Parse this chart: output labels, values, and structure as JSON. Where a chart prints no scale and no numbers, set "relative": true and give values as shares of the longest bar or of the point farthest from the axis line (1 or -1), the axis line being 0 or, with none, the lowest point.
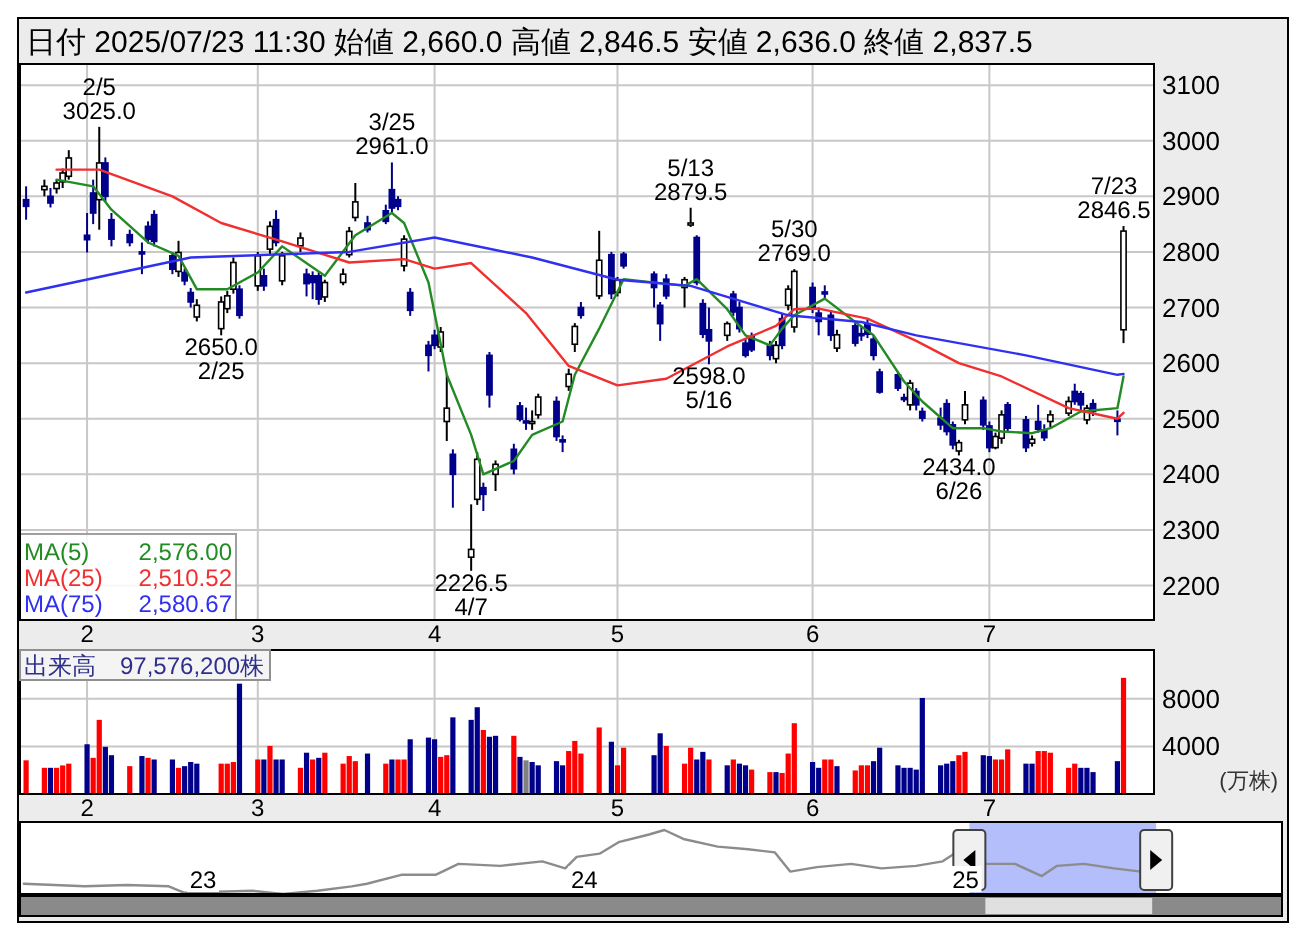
{
  "chart_data": [
    {
      "type": "candlestick",
      "title": "日付 2025/07/23 11:30 始値 2,660.0 高値 2,846.5 安値 2,636.0 終値 2,837.5",
      "grid": true,
      "legend": "bottom left",
      "xlim": [
        "2025-01-23",
        "2025-07-28"
      ],
      "ylim": [
        2138,
        3138
      ],
      "yticks": [
        2200,
        2300,
        2400,
        2500,
        2600,
        2700,
        2800,
        2900,
        3000,
        3100
      ],
      "xticks": [
        {
          "value": "2025-02-03",
          "label": "2"
        },
        {
          "value": "2025-03-03",
          "label": "3"
        },
        {
          "value": "2025-04-01",
          "label": "4"
        },
        {
          "value": "2025-05-01",
          "label": "5"
        },
        {
          "value": "2025-06-02",
          "label": "6"
        },
        {
          "value": "2025-07-01",
          "label": "7"
        }
      ],
      "x": [
        "2025-01-24",
        "2025-01-27",
        "2025-01-28",
        "2025-01-29",
        "2025-01-30",
        "2025-01-31",
        "2025-02-03",
        "2025-02-04",
        "2025-02-05",
        "2025-02-06",
        "2025-02-07",
        "2025-02-10",
        "2025-02-12",
        "2025-02-13",
        "2025-02-14",
        "2025-02-17",
        "2025-02-18",
        "2025-02-19",
        "2025-02-20",
        "2025-02-21",
        "2025-02-25",
        "2025-02-26",
        "2025-02-27",
        "2025-02-28",
        "2025-03-03",
        "2025-03-04",
        "2025-03-05",
        "2025-03-06",
        "2025-03-07",
        "2025-03-10",
        "2025-03-11",
        "2025-03-12",
        "2025-03-13",
        "2025-03-14",
        "2025-03-17",
        "2025-03-18",
        "2025-03-19",
        "2025-03-21",
        "2025-03-24",
        "2025-03-25",
        "2025-03-26",
        "2025-03-27",
        "2025-03-28",
        "2025-03-31",
        "2025-04-01",
        "2025-04-02",
        "2025-04-03",
        "2025-04-04",
        "2025-04-07",
        "2025-04-08",
        "2025-04-09",
        "2025-04-10",
        "2025-04-11",
        "2025-04-14",
        "2025-04-15",
        "2025-04-16",
        "2025-04-17",
        "2025-04-18",
        "2025-04-21",
        "2025-04-22",
        "2025-04-23",
        "2025-04-24",
        "2025-04-25",
        "2025-04-28",
        "2025-04-30",
        "2025-05-01",
        "2025-05-02",
        "2025-05-07",
        "2025-05-08",
        "2025-05-09",
        "2025-05-12",
        "2025-05-13",
        "2025-05-14",
        "2025-05-15",
        "2025-05-16",
        "2025-05-19",
        "2025-05-20",
        "2025-05-21",
        "2025-05-22",
        "2025-05-23",
        "2025-05-26",
        "2025-05-27",
        "2025-05-28",
        "2025-05-29",
        "2025-05-30",
        "2025-06-02",
        "2025-06-03",
        "2025-06-04",
        "2025-06-05",
        "2025-06-06",
        "2025-06-09",
        "2025-06-10",
        "2025-06-11",
        "2025-06-12",
        "2025-06-13",
        "2025-06-16",
        "2025-06-17",
        "2025-06-18",
        "2025-06-19",
        "2025-06-20",
        "2025-06-23",
        "2025-06-24",
        "2025-06-25",
        "2025-06-26",
        "2025-06-27",
        "2025-06-30",
        "2025-07-01",
        "2025-07-02",
        "2025-07-03",
        "2025-07-04",
        "2025-07-07",
        "2025-07-08",
        "2025-07-09",
        "2025-07-10",
        "2025-07-11",
        "2025-07-14",
        "2025-07-15",
        "2025-07-16",
        "2025-07-17",
        "2025-07-18",
        "2025-07-22",
        "2025-07-23"
      ],
      "ohlc": [
        [
          2894,
          2918,
          2858,
          2882
        ],
        [
          2912,
          2930,
          2900,
          2918
        ],
        [
          2900,
          2915,
          2880,
          2888
        ],
        [
          2914,
          2930,
          2905,
          2924
        ],
        [
          2926,
          2950,
          2915,
          2942
        ],
        [
          2936,
          2983,
          2930,
          2969
        ],
        [
          2830,
          2870,
          2799,
          2822
        ],
        [
          2906,
          2930,
          2850,
          2870
        ],
        [
          2894,
          3025,
          2840,
          2960
        ],
        [
          2960,
          2970,
          2890,
          2900
        ],
        [
          2858,
          2870,
          2810,
          2823
        ],
        [
          2831,
          2840,
          2810,
          2817
        ],
        [
          2800,
          2817,
          2760,
          2799
        ],
        [
          2846,
          2855,
          2815,
          2823
        ],
        [
          2867,
          2875,
          2810,
          2819
        ],
        [
          2793,
          2800,
          2760,
          2769
        ],
        [
          2765,
          2820,
          2755,
          2799
        ],
        [
          2763,
          2770,
          2740,
          2748
        ],
        [
          2727,
          2735,
          2700,
          2710
        ],
        [
          2683,
          2715,
          2675,
          2704
        ],
        [
          2662,
          2720,
          2650,
          2710
        ],
        [
          2698,
          2730,
          2690,
          2721
        ],
        [
          2733,
          2790,
          2725,
          2781
        ],
        [
          2733,
          2740,
          2680,
          2686
        ],
        [
          2739,
          2800,
          2730,
          2793
        ],
        [
          2757,
          2770,
          2730,
          2739
        ],
        [
          2805,
          2855,
          2795,
          2846
        ],
        [
          2858,
          2875,
          2810,
          2817
        ],
        [
          2748,
          2800,
          2740,
          2793
        ],
        [
          2811,
          2835,
          2800,
          2825
        ],
        [
          2760,
          2770,
          2720,
          2743
        ],
        [
          2757,
          2765,
          2715,
          2745
        ],
        [
          2757,
          2765,
          2705,
          2715
        ],
        [
          2719,
          2750,
          2710,
          2745
        ],
        [
          2745,
          2770,
          2740,
          2760
        ],
        [
          2795,
          2845,
          2790,
          2837
        ],
        [
          2862,
          2924,
          2855,
          2890
        ],
        [
          2852,
          2865,
          2835,
          2840
        ],
        [
          2874,
          2885,
          2850,
          2855
        ],
        [
          2912,
          2961,
          2870,
          2879
        ],
        [
          2894,
          2900,
          2875,
          2882
        ],
        [
          2775,
          2830,
          2765,
          2823
        ],
        [
          2727,
          2735,
          2685,
          2695
        ],
        [
          2632,
          2640,
          2585,
          2614
        ],
        [
          2650,
          2660,
          2625,
          2632
        ],
        [
          2629,
          2665,
          2620,
          2656
        ],
        [
          2495,
          2579,
          2460,
          2519
        ],
        [
          2436,
          2445,
          2340,
          2400
        ],
        [
          2251,
          2346,
          2226.5,
          2265
        ],
        [
          2355,
          2440,
          2345,
          2427
        ],
        [
          2376,
          2385,
          2334,
          2364
        ],
        [
          2614,
          2620,
          2520,
          2543
        ],
        [
          2400,
          2425,
          2370,
          2418
        ],
        [
          2445,
          2455,
          2400,
          2410
        ],
        [
          2523,
          2530,
          2495,
          2499
        ],
        [
          2496,
          2520,
          2480,
          2495
        ],
        [
          2494,
          2515,
          2480,
          2495
        ],
        [
          2507,
          2545,
          2500,
          2539
        ],
        [
          2531,
          2540,
          2460,
          2468
        ],
        [
          2462,
          2470,
          2440,
          2460
        ],
        [
          2558,
          2590,
          2550,
          2580
        ],
        [
          2634,
          2672,
          2620,
          2666
        ],
        [
          2700,
          2710,
          2680,
          2686
        ],
        [
          2721,
          2838,
          2715,
          2785
        ],
        [
          2795,
          2800,
          2715,
          2725
        ],
        [
          2727,
          2755,
          2720,
          2749
        ],
        [
          2796,
          2800,
          2770,
          2775
        ],
        [
          2760,
          2765,
          2700,
          2736
        ],
        [
          2704,
          2710,
          2640,
          2671
        ],
        [
          2751,
          2760,
          2715,
          2721
        ],
        [
          2736,
          2755,
          2700,
          2750
        ],
        [
          2850,
          2879.5,
          2845,
          2852
        ],
        [
          2826,
          2830,
          2740,
          2745
        ],
        [
          2707,
          2715,
          2645,
          2652
        ],
        [
          2660,
          2700,
          2598,
          2640
        ],
        [
          2650,
          2675,
          2640,
          2671
        ],
        [
          2724,
          2730,
          2685,
          2692
        ],
        [
          2700,
          2710,
          2655,
          2662
        ],
        [
          2636,
          2645,
          2610,
          2614
        ],
        [
          2648,
          2655,
          2620,
          2624
        ],
        [
          2632,
          2640,
          2605,
          2614
        ],
        [
          2608,
          2640,
          2600,
          2632
        ],
        [
          2680,
          2690,
          2625,
          2632
        ],
        [
          2704,
          2740,
          2695,
          2733
        ],
        [
          2665,
          2769,
          2655,
          2765
        ],
        [
          2736,
          2745,
          2690,
          2698
        ],
        [
          2690,
          2700,
          2650,
          2675
        ],
        [
          2728,
          2740,
          2715,
          2727
        ],
        [
          2686,
          2695,
          2640,
          2650
        ],
        [
          2627,
          2660,
          2620,
          2651
        ],
        [
          2667,
          2675,
          2630,
          2636
        ],
        [
          2653,
          2665,
          2640,
          2652
        ],
        [
          2671,
          2680,
          2645,
          2652
        ],
        [
          2643,
          2650,
          2605,
          2614
        ],
        [
          2584,
          2590,
          2545,
          2548
        ],
        [
          2579,
          2585,
          2550,
          2555
        ],
        [
          2538,
          2545,
          2530,
          2537
        ],
        [
          2525,
          2570,
          2515,
          2564
        ],
        [
          2549,
          2555,
          2515,
          2525
        ],
        [
          2513,
          2520,
          2495,
          2501
        ],
        [
          2501,
          2520,
          2480,
          2489
        ],
        [
          2527,
          2535,
          2470,
          2477
        ],
        [
          2489,
          2495,
          2445,
          2453
        ],
        [
          2442,
          2462,
          2434,
          2457
        ],
        [
          2498,
          2550,
          2490,
          2525
        ],
        [
          2533,
          2540,
          2480,
          2489
        ],
        [
          2487,
          2495,
          2440,
          2448
        ],
        [
          2448,
          2475,
          2445,
          2468
        ],
        [
          2465,
          2515,
          2455,
          2507
        ],
        [
          2525,
          2530,
          2475,
          2483
        ],
        [
          2498,
          2505,
          2440,
          2448
        ],
        [
          2456,
          2470,
          2450,
          2463
        ],
        [
          2495,
          2525,
          2475,
          2481
        ],
        [
          2480,
          2490,
          2460,
          2466
        ],
        [
          2495,
          2515,
          2485,
          2507
        ],
        [
          2510,
          2540,
          2505,
          2531
        ],
        [
          2549,
          2563,
          2525,
          2531
        ],
        [
          2545,
          2550,
          2515,
          2525
        ],
        [
          2498,
          2525,
          2490,
          2519
        ],
        [
          2527,
          2535,
          2505,
          2513
        ],
        [
          2499,
          2515,
          2470,
          2498
        ],
        [
          2660,
          2846.5,
          2636,
          2837.5
        ]
      ],
      "series": [
        {
          "type": "line",
          "name": "MA(5)",
          "color": "#238b23",
          "x": [
            "2025-01-29",
            "2025-02-04",
            "2025-02-07",
            "2025-02-13",
            "2025-02-18",
            "2025-02-21",
            "2025-02-26",
            "2025-03-03",
            "2025-03-07",
            "2025-03-14",
            "2025-03-19",
            "2025-03-25",
            "2025-03-27",
            "2025-03-31",
            "2025-04-03",
            "2025-04-07",
            "2025-04-09",
            "2025-04-14",
            "2025-04-17",
            "2025-04-22",
            "2025-04-24",
            "2025-04-28",
            "2025-05-02",
            "2025-05-12",
            "2025-05-14",
            "2025-05-19",
            "2025-05-22",
            "2025-05-26",
            "2025-05-28",
            "2025-05-30",
            "2025-06-04",
            "2025-06-09",
            "2025-06-12",
            "2025-06-17",
            "2025-06-20",
            "2025-06-25",
            "2025-06-30",
            "2025-07-03",
            "2025-07-08",
            "2025-07-11",
            "2025-07-16",
            "2025-07-22",
            "2025-07-23"
          ],
          "values": [
            2930,
            2918,
            2876,
            2817,
            2793,
            2733,
            2733,
            2763,
            2810,
            2757,
            2830,
            2870,
            2852,
            2745,
            2579,
            2471,
            2400,
            2424,
            2471,
            2495,
            2579,
            2662,
            2751,
            2739,
            2751,
            2697,
            2650,
            2632,
            2662,
            2686,
            2716,
            2674,
            2650,
            2567,
            2531,
            2483,
            2483,
            2477,
            2474,
            2483,
            2513,
            2519,
            2576
          ]
        },
        {
          "type": "line",
          "name": "MA(25)",
          "color": "#f03030",
          "x": [
            "2025-01-29",
            "2025-02-05",
            "2025-02-17",
            "2025-02-25",
            "2025-03-07",
            "2025-03-18",
            "2025-03-27",
            "2025-04-01",
            "2025-04-07",
            "2025-04-16",
            "2025-04-23",
            "2025-05-01",
            "2025-05-09",
            "2025-05-19",
            "2025-05-27",
            "2025-05-30",
            "2025-06-03",
            "2025-06-11",
            "2025-06-19",
            "2025-06-26",
            "2025-07-03",
            "2025-07-14",
            "2025-07-22",
            "2025-07-23"
          ],
          "values": [
            2948,
            2948,
            2900,
            2852,
            2819,
            2781,
            2787,
            2770,
            2780,
            2690,
            2595,
            2560,
            2572,
            2630,
            2667,
            2697,
            2698,
            2680,
            2640,
            2600,
            2576,
            2519,
            2500,
            2510.52
          ]
        },
        {
          "type": "line",
          "name": "MA(75)",
          "color": "#3030f0",
          "x": [
            "2025-01-24",
            "2025-02-20",
            "2025-03-18",
            "2025-04-01",
            "2025-04-17",
            "2025-05-01",
            "2025-05-13",
            "2025-05-29",
            "2025-06-10",
            "2025-06-19",
            "2025-07-07",
            "2025-07-22",
            "2025-07-23"
          ],
          "values": [
            2727,
            2790,
            2800,
            2826,
            2790,
            2750,
            2739,
            2686,
            2674,
            2650,
            2614,
            2579,
            2580.67
          ]
        }
      ],
      "annotations": [
        "2,576.00",
        "2,510.52",
        "2,580.67",
        {
          "text": "2/5\n3025.0",
          "x": "2025-02-05",
          "y": 3025
        },
        {
          "text": "3/25\n2961.0",
          "x": "2025-03-25",
          "y": 2961
        },
        {
          "text": "5/13\n2879.5",
          "x": "2025-05-13",
          "y": 2879.5
        },
        {
          "text": "5/30\n2769.0",
          "x": "2025-05-30",
          "y": 2769
        },
        {
          "text": "7/23\n2846.5",
          "x": "2025-07-23",
          "y": 2846.5
        },
        {
          "text": "2650.0\n2/25",
          "x": "2025-02-25",
          "y": 2650
        },
        {
          "text": "2226.5\n4/7",
          "x": "2025-04-07",
          "y": 2226.5
        },
        {
          "text": "2598.0\n5/16",
          "x": "2025-05-16",
          "y": 2598
        },
        {
          "text": "2434.0\n6/26",
          "x": "2025-06-26",
          "y": 2434
        }
      ]
    },
    {
      "type": "bar",
      "title": "出来高　97,576,200株",
      "ylabel": "(万株)",
      "grid": true,
      "xlim": [
        "2025-01-23",
        "2025-07-28"
      ],
      "ylim": [
        0,
        12100
      ],
      "yticks": [
        4000,
        8000
      ],
      "xticks": [
        {
          "value": "2025-02-03",
          "label": "2"
        },
        {
          "value": "2025-03-03",
          "label": "3"
        },
        {
          "value": "2025-04-01",
          "label": "4"
        },
        {
          "value": "2025-05-01",
          "label": "5"
        },
        {
          "value": "2025-06-02",
          "label": "6"
        },
        {
          "value": "2025-07-01",
          "label": "7"
        }
      ],
      "x": [
        "2025-01-24",
        "2025-01-27",
        "2025-01-28",
        "2025-01-29",
        "2025-01-30",
        "2025-01-31",
        "2025-02-03",
        "2025-02-04",
        "2025-02-05",
        "2025-02-06",
        "2025-02-07",
        "2025-02-10",
        "2025-02-12",
        "2025-02-13",
        "2025-02-14",
        "2025-02-17",
        "2025-02-18",
        "2025-02-19",
        "2025-02-20",
        "2025-02-21",
        "2025-02-25",
        "2025-02-26",
        "2025-02-27",
        "2025-02-28",
        "2025-03-03",
        "2025-03-04",
        "2025-03-05",
        "2025-03-06",
        "2025-03-07",
        "2025-03-10",
        "2025-03-11",
        "2025-03-12",
        "2025-03-13",
        "2025-03-14",
        "2025-03-17",
        "2025-03-18",
        "2025-03-19",
        "2025-03-21",
        "2025-03-24",
        "2025-03-25",
        "2025-03-26",
        "2025-03-27",
        "2025-03-28",
        "2025-03-31",
        "2025-04-01",
        "2025-04-02",
        "2025-04-03",
        "2025-04-04",
        "2025-04-07",
        "2025-04-08",
        "2025-04-09",
        "2025-04-10",
        "2025-04-11",
        "2025-04-14",
        "2025-04-15",
        "2025-04-16",
        "2025-04-17",
        "2025-04-18",
        "2025-04-21",
        "2025-04-22",
        "2025-04-23",
        "2025-04-24",
        "2025-04-25",
        "2025-04-28",
        "2025-04-30",
        "2025-05-01",
        "2025-05-02",
        "2025-05-07",
        "2025-05-08",
        "2025-05-09",
        "2025-05-12",
        "2025-05-13",
        "2025-05-14",
        "2025-05-15",
        "2025-05-16",
        "2025-05-19",
        "2025-05-20",
        "2025-05-21",
        "2025-05-22",
        "2025-05-23",
        "2025-05-26",
        "2025-05-27",
        "2025-05-28",
        "2025-05-29",
        "2025-05-30",
        "2025-06-02",
        "2025-06-03",
        "2025-06-04",
        "2025-06-05",
        "2025-06-06",
        "2025-06-09",
        "2025-06-10",
        "2025-06-11",
        "2025-06-12",
        "2025-06-13",
        "2025-06-16",
        "2025-06-17",
        "2025-06-18",
        "2025-06-19",
        "2025-06-20",
        "2025-06-23",
        "2025-06-24",
        "2025-06-25",
        "2025-06-26",
        "2025-06-27",
        "2025-06-30",
        "2025-07-01",
        "2025-07-02",
        "2025-07-03",
        "2025-07-04",
        "2025-07-07",
        "2025-07-08",
        "2025-07-09",
        "2025-07-10",
        "2025-07-11",
        "2025-07-14",
        "2025-07-15",
        "2025-07-16",
        "2025-07-17",
        "2025-07-18",
        "2025-07-22",
        "2025-07-23"
      ],
      "values": [
        2830,
        2200,
        2200,
        2200,
        2400,
        2550,
        4180,
        3040,
        6230,
        3960,
        3260,
        2340,
        3190,
        3040,
        2900,
        2900,
        2200,
        2340,
        2690,
        2550,
        2550,
        2550,
        2690,
        9270,
        2900,
        2900,
        4040,
        2900,
        2900,
        2200,
        3470,
        2900,
        3040,
        3470,
        2550,
        3190,
        2760,
        3400,
        2550,
        2900,
        2900,
        2900,
        4600,
        4740,
        4600,
        3120,
        3260,
        6440,
        6230,
        7290,
        5380,
        4810,
        4890,
        4890,
        3120,
        2830,
        2690,
        2410,
        2760,
        2410,
        3610,
        4460,
        3400,
        5590,
        4390,
        2410,
        3890,
        3260,
        5100,
        4040,
        2550,
        3890,
        2900,
        3540,
        2900,
        2410,
        2900,
        2550,
        2410,
        2050,
        1840,
        1840,
        1770,
        3400,
        5950,
        2690,
        2200,
        2900,
        2900,
        2340,
        1980,
        2410,
        2410,
        2760,
        3890,
        2410,
        2200,
        2200,
        2050,
        8070,
        2410,
        2550,
        2760,
        3260,
        3540,
        3260,
        3190,
        2900,
        2900,
        3750,
        2550,
        2550,
        3610,
        3610,
        3470,
        2200,
        2550,
        2200,
        2200,
        1840,
        2760,
        9758
      ],
      "colors": [
        "#ff0000",
        "#ff0000",
        "#00008b",
        "#ff0000",
        "#ff0000",
        "#ff0000",
        "#00008b",
        "#ff0000",
        "#ff0000",
        "#00008b",
        "#00008b",
        "#ff0000",
        "#00008b",
        "#ff0000",
        "#00008b",
        "#00008b",
        "#ff0000",
        "#00008b",
        "#00008b",
        "#00008b",
        "#ff0000",
        "#ff0000",
        "#ff0000",
        "#00008b",
        "#ff0000",
        "#00008b",
        "#ff0000",
        "#00008b",
        "#00008b",
        "#ff0000",
        "#00008b",
        "#ff0000",
        "#00008b",
        "#ff0000",
        "#ff0000",
        "#ff0000",
        "#ff0000",
        "#00008b",
        "#ff0000",
        "#00008b",
        "#ff0000",
        "#ff0000",
        "#00008b",
        "#00008b",
        "#00008b",
        "#ff0000",
        "#ff0000",
        "#00008b",
        "#00008b",
        "#00008b",
        "#ff0000",
        "#00008b",
        "#00008b",
        "#ff0000",
        "#00008b",
        "#808080",
        "#00008b",
        "#00008b",
        "#00008b",
        "#00008b",
        "#ff0000",
        "#ff0000",
        "#ff0000",
        "#ff0000",
        "#00008b",
        "#ff0000",
        "#ff0000",
        "#00008b",
        "#00008b",
        "#ff0000",
        "#ff0000",
        "#ff0000",
        "#00008b",
        "#00008b",
        "#ff0000",
        "#00008b",
        "#ff0000",
        "#00008b",
        "#00008b",
        "#ff0000",
        "#ff0000",
        "#00008b",
        "#ff0000",
        "#ff0000",
        "#ff0000",
        "#00008b",
        "#00008b",
        "#ff0000",
        "#ff0000",
        "#00008b",
        "#ff0000",
        "#ff0000",
        "#ff0000",
        "#00008b",
        "#00008b",
        "#00008b",
        "#00008b",
        "#00008b",
        "#00008b",
        "#00008b",
        "#00008b",
        "#00008b",
        "#00008b",
        "#ff0000",
        "#ff0000",
        "#00008b",
        "#00008b",
        "#ff0000",
        "#ff0000",
        "#ff0000",
        "#00008b",
        "#00008b",
        "#ff0000",
        "#ff0000",
        "#ff0000",
        "#ff0000",
        "#ff0000",
        "#00008b",
        "#00008b",
        "#00008b",
        "#00008b",
        "#ff0000"
      ]
    },
    {
      "type": "line",
      "relative": true,
      "tick_labels": "x",
      "xlim": [
        2022.52,
        2025.83
      ],
      "xticks": [
        {
          "value": 2023,
          "label": "23"
        },
        {
          "value": 2024,
          "label": "24"
        },
        {
          "value": 2025,
          "label": "25"
        }
      ],
      "bands": [
        {
          "axis": "x",
          "from": 2025.01,
          "to": 2025.5,
          "color": "#b4befa"
        }
      ],
      "series": [
        {
          "color": "#8c8c8c",
          "x": [
            2022.53,
            2022.69,
            2022.8,
            2022.91,
            2022.95,
            2023.13,
            2023.21,
            2023.3,
            2023.39,
            2023.43,
            2023.52,
            2023.61,
            2023.67,
            2023.78,
            2023.89,
            2023.95,
            2023.98,
            2024.04,
            2024.09,
            2024.17,
            2024.21,
            2024.26,
            2024.35,
            2024.43,
            2024.5,
            2024.54,
            2024.61,
            2024.7,
            2024.78,
            2024.87,
            2024.94,
            2024.97,
            2025.05,
            2025.13,
            2025.2,
            2025.24,
            2025.31,
            2025.39,
            2025.46
          ],
          "values": [
            0.16,
            0.12,
            0.14,
            0.12,
            0.02,
            0.05,
            0,
            0.05,
            0.12,
            0.16,
            0.3,
            0.3,
            0.47,
            0.44,
            0.51,
            0.4,
            0.58,
            0.63,
            0.81,
            0.93,
            1,
            0.86,
            0.74,
            0.7,
            0.65,
            0.35,
            0.42,
            0.47,
            0.4,
            0.44,
            0.51,
            0.63,
            0.47,
            0.47,
            0.28,
            0.44,
            0.47,
            0.4,
            0.35
          ]
        }
      ]
    }
  ]
}
